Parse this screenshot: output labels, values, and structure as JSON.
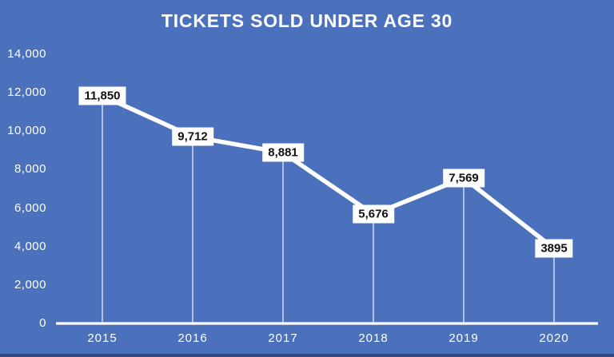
{
  "chart_data": {
    "type": "line",
    "title": "TICKETS SOLD UNDER AGE 30",
    "categories": [
      "2015",
      "2016",
      "2017",
      "2018",
      "2019",
      "2020"
    ],
    "values": [
      11850,
      9712,
      8881,
      5676,
      7569,
      3895
    ],
    "value_labels": [
      "11,850",
      "9,712",
      "8,881",
      "5,676",
      "7,569",
      "3895"
    ],
    "xlabel": "",
    "ylabel": "",
    "ylim": [
      0,
      14000
    ],
    "ytick_values": [
      0,
      2000,
      4000,
      6000,
      8000,
      10000,
      12000,
      14000
    ],
    "ytick_labels": [
      "0",
      "2,000",
      "4,000",
      "6,000",
      "8,000",
      "10,000",
      "12,000",
      "14,000"
    ],
    "grid": false,
    "legend": "none",
    "data_labels": "boxed, centered on points",
    "drop_lines": true
  },
  "colors": {
    "background": "#4B70BC",
    "line": "#FFFFFF",
    "axis": "#FFFFFF",
    "drop_line": "rgba(255,255,255,0.8)",
    "text": "#FFFFFF",
    "data_label_bg": "#FFFFFF",
    "data_label_text": "#111111",
    "bottom_strip": "#33497E"
  }
}
